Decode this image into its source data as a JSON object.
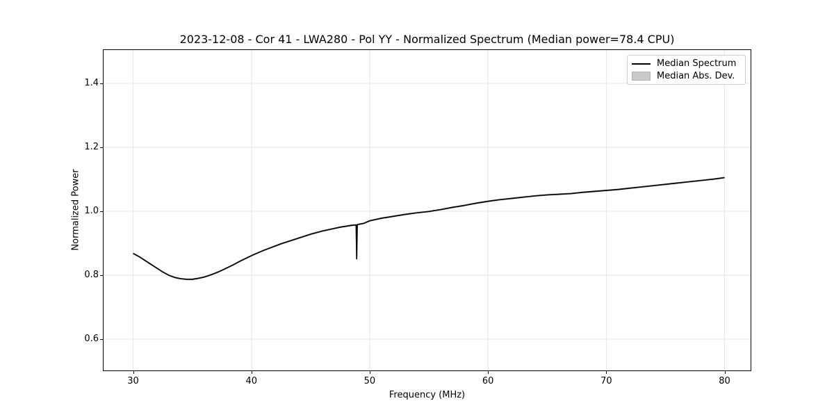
{
  "figure": {
    "title": "2023-12-08 - Cor 41 - LWA280 - Pol YY - Normalized Spectrum (Median power=78.4 CPU)",
    "xlabel": "Frequency (MHz)",
    "ylabel": "Normalized Power"
  },
  "legend": {
    "position": "upper right",
    "items": [
      {
        "label": "Median Spectrum",
        "type": "line"
      },
      {
        "label": "Median Abs. Dev.",
        "type": "patch"
      }
    ]
  },
  "colors": {
    "line": "#000000",
    "mad_fill": "#c9c9c9",
    "mad_edge": "#b4b4b4",
    "grid": "#e6e6e6",
    "legend_border": "#cccccc",
    "background": "#ffffff"
  },
  "chart_data": {
    "type": "line",
    "title": "2023-12-08 - Cor 41 - LWA280 - Pol YY - Normalized Spectrum (Median power=78.4 CPU)",
    "xlabel": "Frequency (MHz)",
    "ylabel": "Normalized Power",
    "xlim": [
      27.5,
      82.2
    ],
    "ylim": [
      0.502,
      1.504
    ],
    "xticks": [
      30,
      40,
      50,
      60,
      70,
      80
    ],
    "xtick_labels": [
      "30",
      "40",
      "50",
      "60",
      "70",
      "80"
    ],
    "yticks": [
      0.6,
      0.8,
      1.0,
      1.2,
      1.4
    ],
    "ytick_labels": [
      "0.6",
      "0.8",
      "1.0",
      "1.2",
      "1.4"
    ],
    "grid": true,
    "legend_position": "upper right",
    "median_power_cpu": 78.4,
    "minimum": {
      "frequency_mhz": 34.7,
      "value": 0.787
    },
    "spike": {
      "frequency_mhz": 48.9,
      "dip_value": 0.851
    },
    "series": [
      {
        "name": "Median Spectrum",
        "x": [
          30,
          30.5,
          31,
          31.5,
          32,
          32.5,
          33,
          33.5,
          34,
          34.5,
          35,
          35.5,
          36,
          36.5,
          37,
          37.5,
          38,
          38.5,
          39,
          39.5,
          40,
          40.5,
          41,
          41.5,
          42,
          42.5,
          43,
          43.5,
          44,
          44.5,
          45,
          45.5,
          46,
          46.5,
          47,
          47.5,
          48,
          48.5,
          48.85,
          48.9,
          48.95,
          49.5,
          50,
          50.5,
          51,
          52,
          53,
          54,
          55,
          56,
          57,
          58,
          59,
          60,
          61,
          62,
          63,
          64,
          65,
          66,
          67,
          68,
          69,
          70,
          71,
          72,
          73,
          74,
          75,
          76,
          77,
          78,
          79,
          80
        ],
        "y": [
          0.868,
          0.858,
          0.846,
          0.834,
          0.822,
          0.81,
          0.8,
          0.793,
          0.789,
          0.787,
          0.787,
          0.79,
          0.794,
          0.8,
          0.807,
          0.815,
          0.824,
          0.833,
          0.843,
          0.852,
          0.861,
          0.869,
          0.877,
          0.884,
          0.891,
          0.898,
          0.904,
          0.91,
          0.916,
          0.922,
          0.928,
          0.933,
          0.938,
          0.942,
          0.946,
          0.95,
          0.953,
          0.956,
          0.957,
          0.851,
          0.958,
          0.962,
          0.97,
          0.974,
          0.978,
          0.984,
          0.99,
          0.995,
          0.999,
          1.005,
          1.012,
          1.018,
          1.025,
          1.031,
          1.036,
          1.04,
          1.044,
          1.048,
          1.051,
          1.053,
          1.055,
          1.059,
          1.062,
          1.065,
          1.068,
          1.072,
          1.076,
          1.08,
          1.084,
          1.088,
          1.092,
          1.096,
          1.1,
          1.105
        ]
      },
      {
        "name": "Median Abs. Dev.",
        "band_halfwidth": 0.003
      }
    ]
  }
}
